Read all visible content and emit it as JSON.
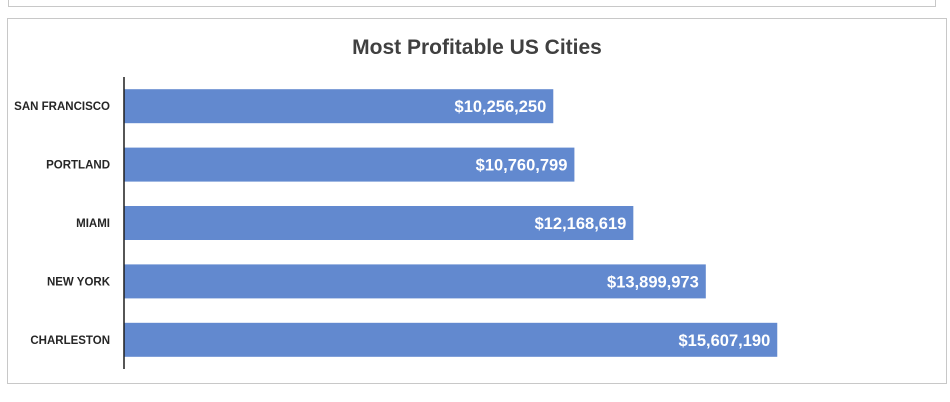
{
  "chart_data": {
    "type": "bar",
    "orientation": "horizontal",
    "title": "Most Profitable US Cities",
    "categories": [
      "SAN FRANCISCO",
      "PORTLAND",
      "MIAMI",
      "NEW YORK",
      "CHARLESTON"
    ],
    "values": [
      10256250,
      10760799,
      12168619,
      13899973,
      15607190
    ],
    "value_labels": [
      "$10,256,250",
      "$10,760,799",
      "$12,168,619",
      "$13,899,973",
      "$15,607,190"
    ],
    "xlabel": "",
    "ylabel": "",
    "xlim": [
      0,
      16700000
    ],
    "grid": false,
    "legend": "none",
    "bar_color": "#6289cf"
  }
}
